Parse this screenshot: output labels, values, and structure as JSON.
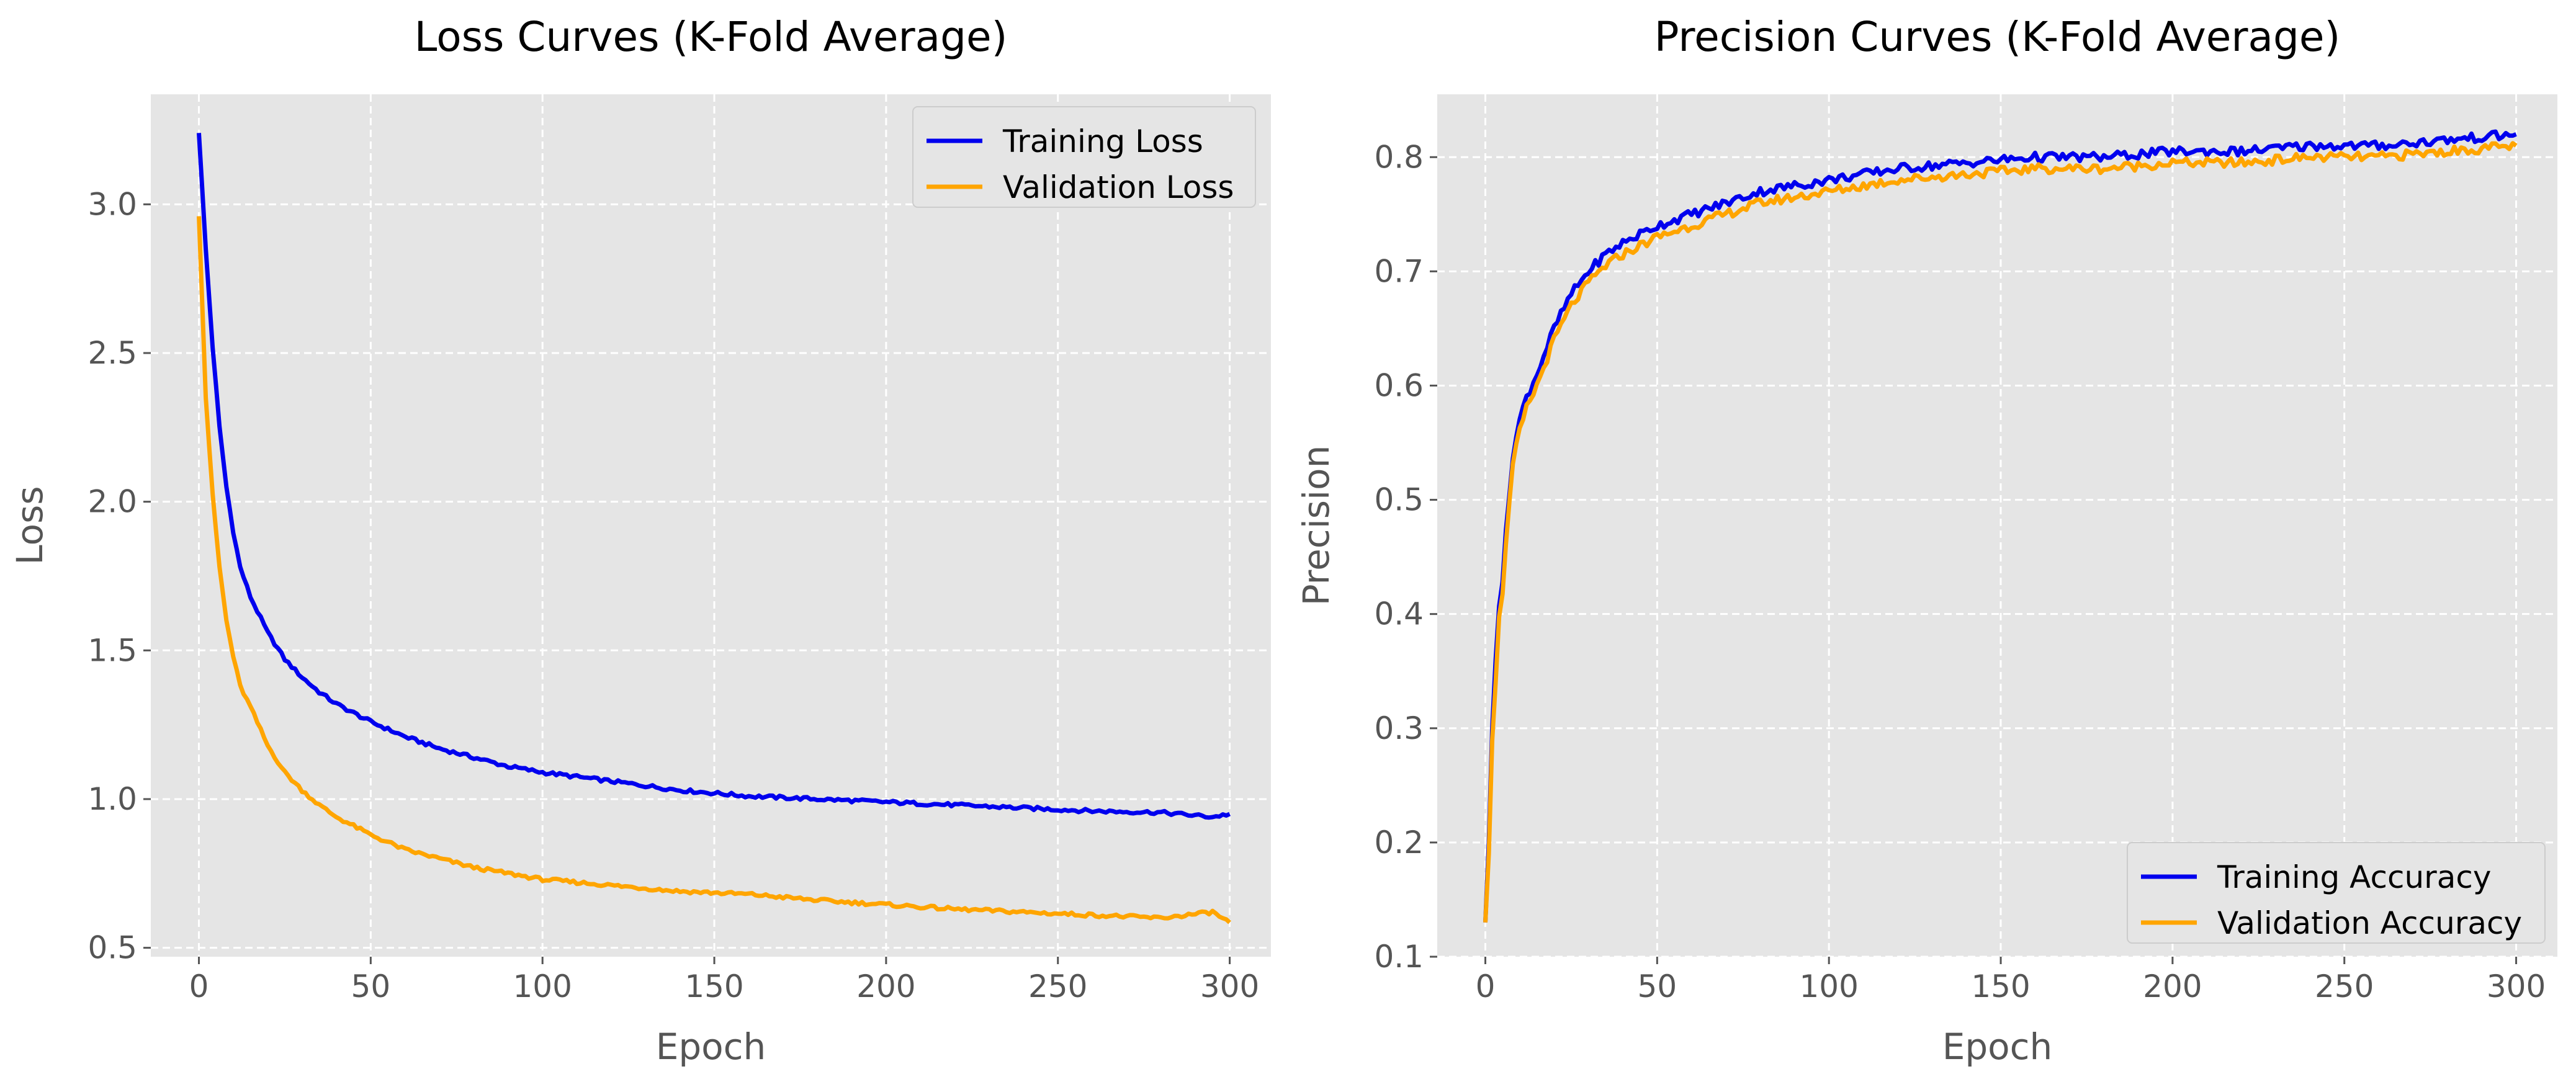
{
  "colors": {
    "panel_bg": "#e5e5e5",
    "grid": "#ffffff",
    "training": "#0000ee",
    "validation": "#ffa500"
  },
  "chart_data": [
    {
      "type": "line",
      "title": "Loss Curves (K-Fold Average)",
      "xlabel": "Epoch",
      "ylabel": "Loss",
      "xlim": [
        -14,
        312
      ],
      "ylim": [
        0.47,
        3.37
      ],
      "xticks": [
        0,
        50,
        100,
        150,
        200,
        250,
        300
      ],
      "yticks": [
        0.5,
        1.0,
        1.5,
        2.0,
        2.5,
        3.0
      ],
      "tick_decimals": 1,
      "grid": true,
      "legend_position": "top-right",
      "noise": 0.006,
      "series": [
        {
          "name": "Training Loss",
          "color": "#0000ee",
          "x": [
            0,
            2,
            4,
            6,
            8,
            10,
            12,
            15,
            20,
            25,
            30,
            35,
            40,
            50,
            60,
            70,
            80,
            90,
            100,
            120,
            140,
            160,
            180,
            200,
            220,
            240,
            260,
            280,
            295,
            300
          ],
          "y": [
            3.24,
            2.85,
            2.52,
            2.25,
            2.05,
            1.9,
            1.78,
            1.68,
            1.56,
            1.47,
            1.41,
            1.36,
            1.32,
            1.26,
            1.21,
            1.17,
            1.14,
            1.11,
            1.09,
            1.06,
            1.03,
            1.01,
            1.0,
            0.99,
            0.98,
            0.97,
            0.96,
            0.955,
            0.94,
            0.95
          ]
        },
        {
          "name": "Validation Loss",
          "color": "#ffa500",
          "x": [
            0,
            2,
            4,
            6,
            8,
            10,
            12,
            15,
            20,
            25,
            30,
            35,
            40,
            50,
            60,
            70,
            80,
            90,
            100,
            120,
            140,
            160,
            180,
            200,
            220,
            240,
            260,
            280,
            295,
            300
          ],
          "y": [
            2.96,
            2.35,
            2.02,
            1.78,
            1.6,
            1.48,
            1.38,
            1.31,
            1.18,
            1.09,
            1.03,
            0.98,
            0.94,
            0.88,
            0.83,
            0.8,
            0.77,
            0.75,
            0.73,
            0.71,
            0.69,
            0.68,
            0.66,
            0.645,
            0.63,
            0.62,
            0.61,
            0.6,
            0.62,
            0.585
          ]
        }
      ]
    },
    {
      "type": "line",
      "title": "Precision Curves (K-Fold Average)",
      "xlabel": "Epoch",
      "ylabel": "Precision",
      "xlim": [
        -14,
        312
      ],
      "ylim": [
        0.1,
        0.855
      ],
      "xticks": [
        0,
        50,
        100,
        150,
        200,
        250,
        300
      ],
      "yticks": [
        0.1,
        0.2,
        0.3,
        0.4,
        0.5,
        0.6,
        0.7,
        0.8
      ],
      "tick_decimals": 1,
      "grid": true,
      "legend_position": "bottom-right",
      "noise": 0.004,
      "series": [
        {
          "name": "Training Accuracy",
          "color": "#0000ee",
          "x": [
            0,
            1,
            2,
            3,
            4,
            5,
            6,
            8,
            10,
            12,
            15,
            20,
            25,
            30,
            35,
            40,
            50,
            60,
            70,
            80,
            90,
            100,
            120,
            140,
            160,
            180,
            200,
            220,
            240,
            260,
            280,
            300
          ],
          "y": [
            0.13,
            0.2,
            0.3,
            0.36,
            0.41,
            0.43,
            0.47,
            0.54,
            0.57,
            0.59,
            0.61,
            0.65,
            0.68,
            0.7,
            0.715,
            0.725,
            0.74,
            0.75,
            0.76,
            0.77,
            0.775,
            0.78,
            0.79,
            0.795,
            0.8,
            0.8,
            0.805,
            0.805,
            0.81,
            0.81,
            0.815,
            0.82
          ]
        },
        {
          "name": "Validation Accuracy",
          "color": "#ffa500",
          "x": [
            0,
            1,
            2,
            3,
            4,
            5,
            6,
            8,
            10,
            12,
            15,
            20,
            25,
            30,
            35,
            40,
            50,
            60,
            70,
            80,
            90,
            100,
            120,
            140,
            160,
            180,
            200,
            220,
            240,
            260,
            280,
            300
          ],
          "y": [
            0.13,
            0.19,
            0.29,
            0.34,
            0.4,
            0.42,
            0.46,
            0.53,
            0.56,
            0.58,
            0.6,
            0.64,
            0.67,
            0.69,
            0.705,
            0.715,
            0.73,
            0.74,
            0.75,
            0.76,
            0.765,
            0.77,
            0.78,
            0.785,
            0.79,
            0.79,
            0.795,
            0.795,
            0.8,
            0.8,
            0.805,
            0.81
          ]
        }
      ]
    }
  ]
}
